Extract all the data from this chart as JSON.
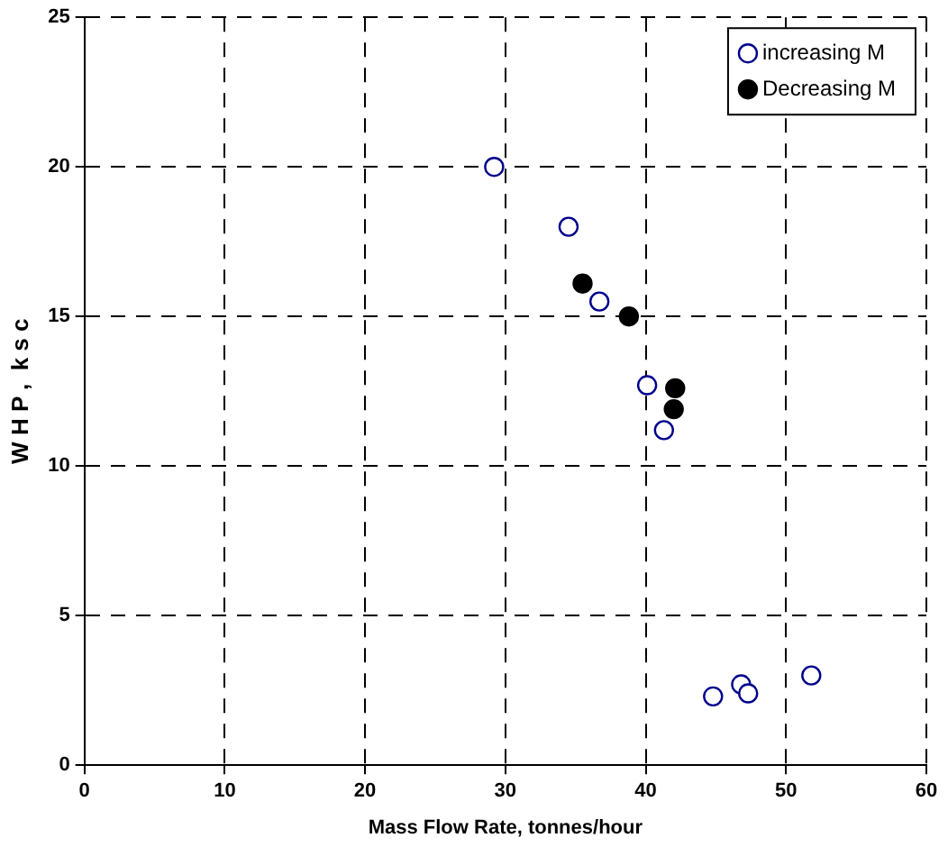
{
  "chart_data": {
    "type": "scatter",
    "xlabel": "Mass Flow Rate, tonnes/hour",
    "ylabel": "W H P ,  k s c",
    "xlim": [
      0,
      60
    ],
    "xticks": [
      0,
      10,
      20,
      30,
      40,
      50,
      60
    ],
    "ylim": [
      0,
      25
    ],
    "yticks": [
      0,
      5,
      10,
      15,
      20,
      25
    ],
    "grid": true,
    "legend": "top right",
    "marker": "circle",
    "series": [
      {
        "name": "increasing M",
        "color": "#00008b",
        "x": [
          29.2,
          34.5,
          36.7,
          40.1,
          41.3,
          44.8,
          46.8,
          47.3,
          51.8
        ],
        "values": [
          20.0,
          18.0,
          15.5,
          12.7,
          11.2,
          2.3,
          2.7,
          2.4,
          3.0
        ]
      },
      {
        "name": "Decreasing M",
        "color": "#000000",
        "x": [
          35.5,
          38.8,
          42.1,
          42.0
        ],
        "values": [
          16.1,
          15.0,
          12.6,
          11.9
        ]
      }
    ]
  }
}
